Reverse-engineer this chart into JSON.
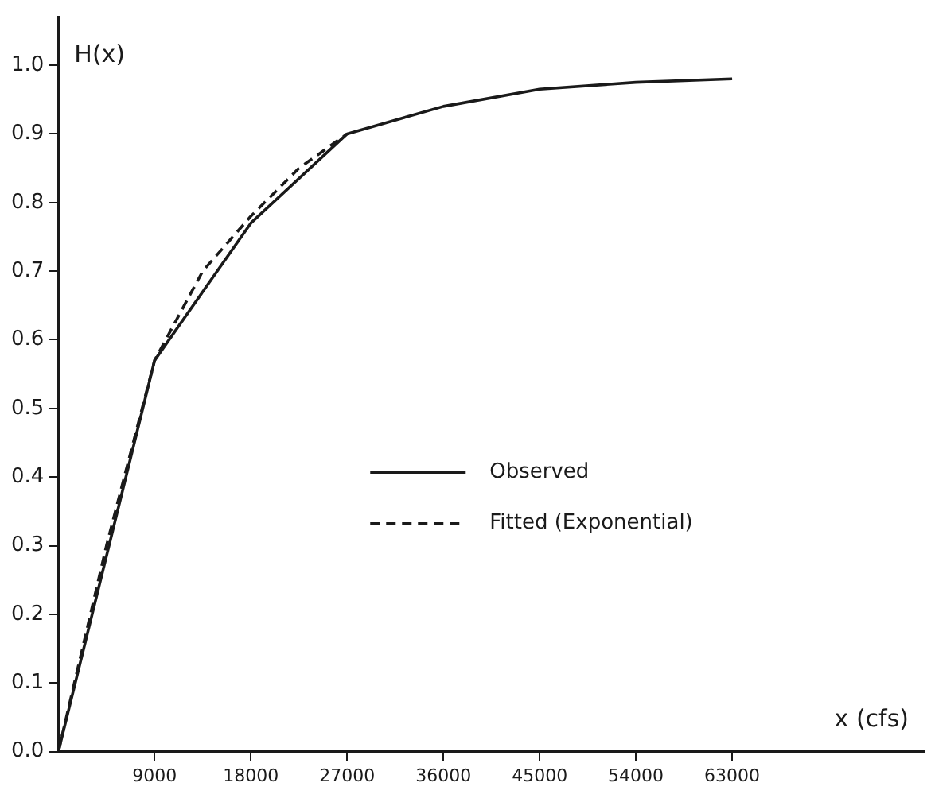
{
  "chart_data": {
    "type": "line",
    "xlabel": "x (cfs)",
    "ylabel": "H(x)",
    "xlim": [
      0,
      81000
    ],
    "ylim": [
      0,
      1.07
    ],
    "xticks": [
      9000,
      18000,
      27000,
      36000,
      45000,
      54000,
      63000
    ],
    "yticks": [
      {
        "value": 0,
        "label": "0.0"
      },
      0.1,
      0.2,
      0.3,
      0.4,
      0.5,
      0.6,
      0.7,
      0.8,
      0.9,
      {
        "value": 1,
        "label": "1.0"
      }
    ],
    "grid": false,
    "legend": "right",
    "marker": "none",
    "series": [
      {
        "name": "Observed",
        "color": "#1a1a1a",
        "line_style": "solid",
        "x": [
          0,
          9000,
          18000,
          27000,
          36000,
          45000,
          54000,
          63000
        ],
        "values": [
          0,
          0.57,
          0.77,
          0.9,
          0.94,
          0.965,
          0.975,
          0.98
        ]
      },
      {
        "name": "Fitted (Exponential)",
        "color": "#1a1a1a",
        "line_style": "dashed",
        "x": [
          0,
          4500,
          9000,
          13500,
          18000,
          22500,
          27000
        ],
        "values": [
          0,
          0.3,
          0.57,
          0.7,
          0.78,
          0.85,
          0.9
        ]
      }
    ]
  }
}
